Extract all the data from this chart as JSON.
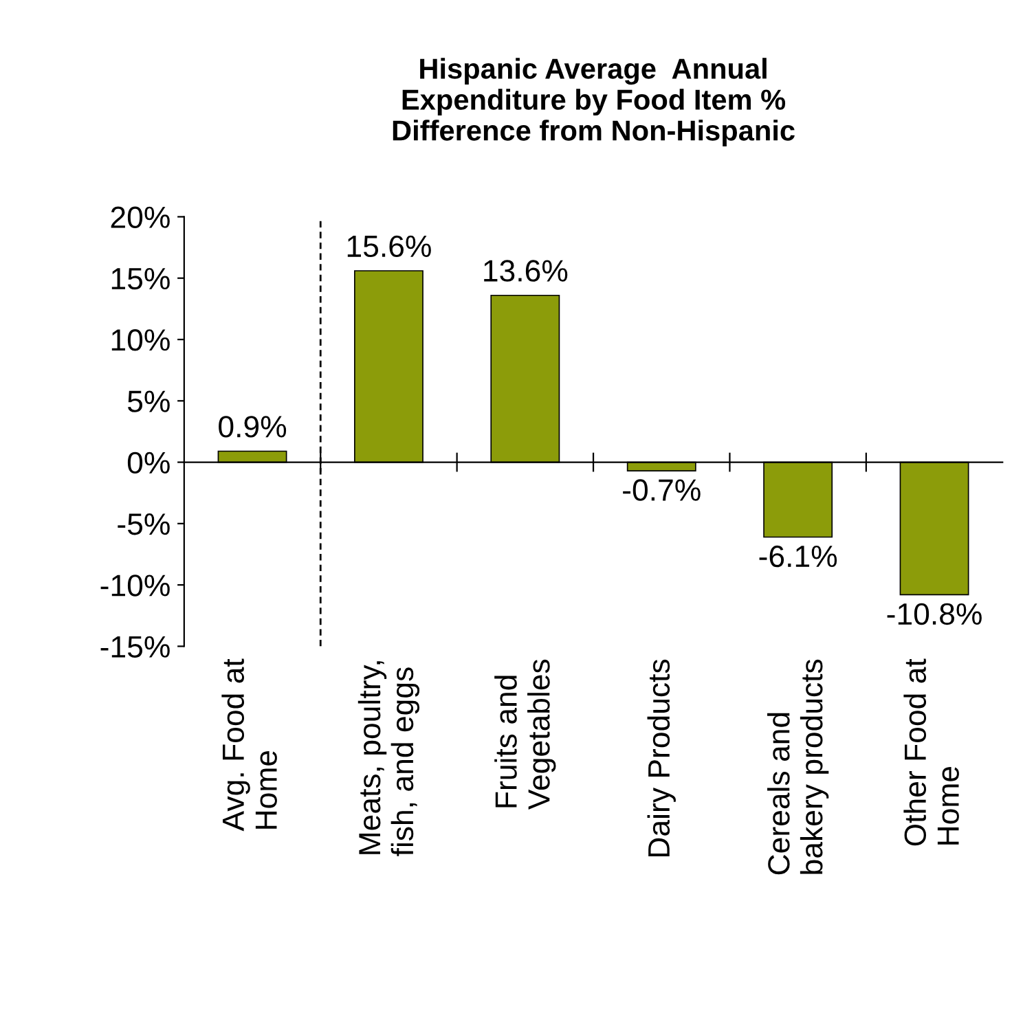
{
  "chart_data": {
    "type": "bar",
    "title": "Hispanic Average  Annual\nExpenditure by Food Item %\nDifference from Non-Hispanic",
    "categories": [
      "Avg. Food at\nHome",
      "Meats, poultry,\nfish, and eggs",
      "Fruits and\nVegetables",
      "Dairy Products",
      "Cereals and\nbakery products",
      "Other Food at\nHome"
    ],
    "values": [
      0.9,
      15.6,
      13.6,
      -0.7,
      -6.1,
      -10.8
    ],
    "value_labels": [
      "0.9%",
      "15.6%",
      "13.6%",
      "-0.7%",
      "-6.1%",
      "-10.8%"
    ],
    "color": "#8c9c0a",
    "ylim": [
      -15,
      20
    ],
    "yticks": [
      {
        "value": -15,
        "label": "-15%"
      },
      {
        "value": -10,
        "label": "-10%"
      },
      {
        "value": -5,
        "label": "-5%"
      },
      {
        "value": 0,
        "label": "0%"
      },
      {
        "value": 5,
        "label": "5%"
      },
      {
        "value": 10,
        "label": "10%"
      },
      {
        "value": 15,
        "label": "15%"
      },
      {
        "value": 20,
        "label": "20%"
      }
    ],
    "legend": false
  }
}
